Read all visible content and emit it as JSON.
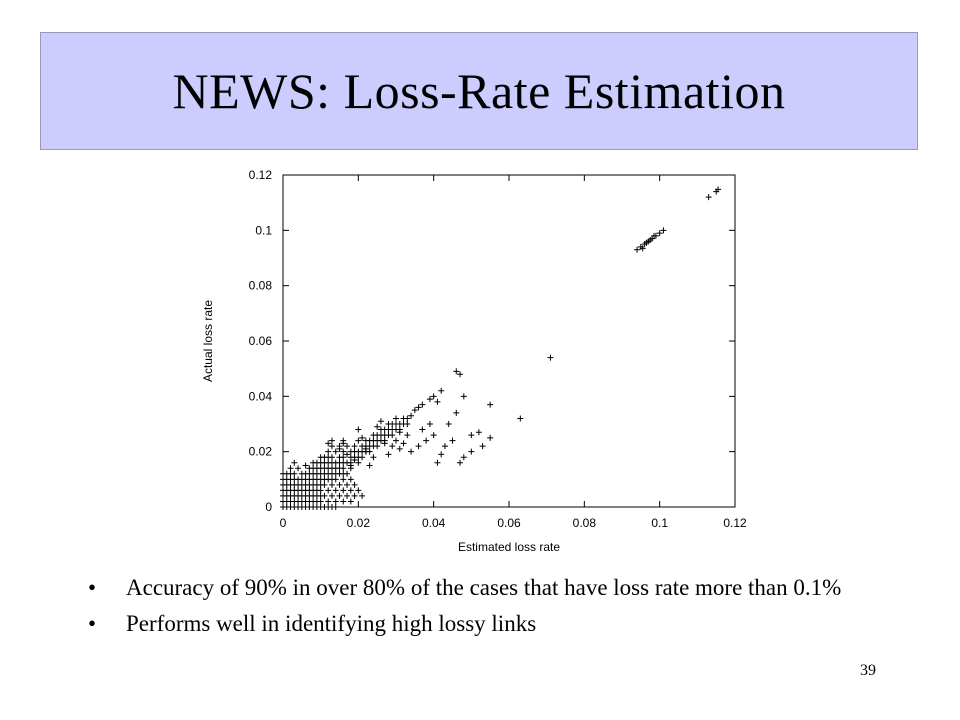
{
  "slide": {
    "title": "NEWS: Loss-Rate Estimation",
    "page_number": "39",
    "bullet_glyph": "•",
    "bullets": [
      "Accuracy of 90% in over 80% of the cases that have loss rate more than 0.1%",
      "Performs well in identifying high lossy links"
    ]
  },
  "chart_data": {
    "type": "scatter",
    "xlabel": "Estimated loss rate",
    "ylabel": "Actual loss rate",
    "xlim": [
      0,
      0.12
    ],
    "ylim": [
      0,
      0.12
    ],
    "xticks": [
      "0",
      "0.02",
      "0.04",
      "0.06",
      "0.08",
      "0.1",
      "0.12"
    ],
    "yticks": [
      "0",
      "0.02",
      "0.04",
      "0.06",
      "0.08",
      "0.1",
      "0.12"
    ],
    "grid": false,
    "marker": "+",
    "color": "#000000",
    "points": [
      [
        0.0,
        0.0
      ],
      [
        0.001,
        0.0
      ],
      [
        0.002,
        0.0
      ],
      [
        0.003,
        0.0
      ],
      [
        0.004,
        0.0
      ],
      [
        0.005,
        0.0
      ],
      [
        0.006,
        0.0
      ],
      [
        0.007,
        0.0
      ],
      [
        0.008,
        0.0
      ],
      [
        0.009,
        0.0
      ],
      [
        0.01,
        0.0
      ],
      [
        0.011,
        0.0
      ],
      [
        0.012,
        0.0
      ],
      [
        0.013,
        0.0
      ],
      [
        0.014,
        0.0
      ],
      [
        0.0,
        0.002
      ],
      [
        0.001,
        0.002
      ],
      [
        0.002,
        0.002
      ],
      [
        0.003,
        0.002
      ],
      [
        0.004,
        0.002
      ],
      [
        0.005,
        0.002
      ],
      [
        0.006,
        0.002
      ],
      [
        0.007,
        0.002
      ],
      [
        0.008,
        0.002
      ],
      [
        0.009,
        0.002
      ],
      [
        0.01,
        0.002
      ],
      [
        0.012,
        0.002
      ],
      [
        0.014,
        0.002
      ],
      [
        0.016,
        0.002
      ],
      [
        0.018,
        0.002
      ],
      [
        0.0,
        0.004
      ],
      [
        0.001,
        0.004
      ],
      [
        0.002,
        0.004
      ],
      [
        0.003,
        0.004
      ],
      [
        0.004,
        0.004
      ],
      [
        0.005,
        0.004
      ],
      [
        0.006,
        0.004
      ],
      [
        0.007,
        0.004
      ],
      [
        0.008,
        0.004
      ],
      [
        0.009,
        0.004
      ],
      [
        0.01,
        0.004
      ],
      [
        0.011,
        0.004
      ],
      [
        0.013,
        0.004
      ],
      [
        0.015,
        0.004
      ],
      [
        0.017,
        0.004
      ],
      [
        0.019,
        0.004
      ],
      [
        0.021,
        0.004
      ],
      [
        0.0,
        0.006
      ],
      [
        0.001,
        0.006
      ],
      [
        0.002,
        0.006
      ],
      [
        0.003,
        0.006
      ],
      [
        0.004,
        0.006
      ],
      [
        0.005,
        0.006
      ],
      [
        0.006,
        0.006
      ],
      [
        0.007,
        0.006
      ],
      [
        0.008,
        0.006
      ],
      [
        0.009,
        0.006
      ],
      [
        0.01,
        0.006
      ],
      [
        0.012,
        0.006
      ],
      [
        0.014,
        0.006
      ],
      [
        0.016,
        0.006
      ],
      [
        0.018,
        0.006
      ],
      [
        0.02,
        0.006
      ],
      [
        0.0,
        0.008
      ],
      [
        0.001,
        0.008
      ],
      [
        0.002,
        0.008
      ],
      [
        0.003,
        0.008
      ],
      [
        0.004,
        0.008
      ],
      [
        0.005,
        0.008
      ],
      [
        0.006,
        0.008
      ],
      [
        0.007,
        0.008
      ],
      [
        0.008,
        0.008
      ],
      [
        0.009,
        0.008
      ],
      [
        0.01,
        0.008
      ],
      [
        0.011,
        0.008
      ],
      [
        0.013,
        0.008
      ],
      [
        0.015,
        0.008
      ],
      [
        0.017,
        0.008
      ],
      [
        0.019,
        0.008
      ],
      [
        0.0,
        0.01
      ],
      [
        0.001,
        0.01
      ],
      [
        0.002,
        0.01
      ],
      [
        0.003,
        0.01
      ],
      [
        0.004,
        0.01
      ],
      [
        0.005,
        0.01
      ],
      [
        0.006,
        0.01
      ],
      [
        0.007,
        0.01
      ],
      [
        0.008,
        0.01
      ],
      [
        0.009,
        0.01
      ],
      [
        0.01,
        0.01
      ],
      [
        0.011,
        0.01
      ],
      [
        0.012,
        0.01
      ],
      [
        0.013,
        0.01
      ],
      [
        0.014,
        0.01
      ],
      [
        0.016,
        0.01
      ],
      [
        0.018,
        0.01
      ],
      [
        0.0,
        0.012
      ],
      [
        0.001,
        0.012
      ],
      [
        0.002,
        0.012
      ],
      [
        0.003,
        0.012
      ],
      [
        0.005,
        0.012
      ],
      [
        0.006,
        0.012
      ],
      [
        0.007,
        0.012
      ],
      [
        0.008,
        0.012
      ],
      [
        0.009,
        0.012
      ],
      [
        0.01,
        0.012
      ],
      [
        0.011,
        0.012
      ],
      [
        0.012,
        0.012
      ],
      [
        0.013,
        0.012
      ],
      [
        0.014,
        0.012
      ],
      [
        0.015,
        0.012
      ],
      [
        0.016,
        0.012
      ],
      [
        0.017,
        0.012
      ],
      [
        0.007,
        0.014
      ],
      [
        0.008,
        0.014
      ],
      [
        0.009,
        0.014
      ],
      [
        0.01,
        0.014
      ],
      [
        0.011,
        0.014
      ],
      [
        0.012,
        0.014
      ],
      [
        0.013,
        0.014
      ],
      [
        0.014,
        0.014
      ],
      [
        0.015,
        0.014
      ],
      [
        0.016,
        0.014
      ],
      [
        0.018,
        0.014
      ],
      [
        0.008,
        0.016
      ],
      [
        0.009,
        0.016
      ],
      [
        0.01,
        0.016
      ],
      [
        0.011,
        0.016
      ],
      [
        0.012,
        0.016
      ],
      [
        0.013,
        0.016
      ],
      [
        0.014,
        0.016
      ],
      [
        0.015,
        0.016
      ],
      [
        0.016,
        0.016
      ],
      [
        0.017,
        0.016
      ],
      [
        0.018,
        0.016
      ],
      [
        0.02,
        0.016
      ],
      [
        0.01,
        0.018
      ],
      [
        0.011,
        0.018
      ],
      [
        0.012,
        0.018
      ],
      [
        0.013,
        0.018
      ],
      [
        0.015,
        0.018
      ],
      [
        0.016,
        0.018
      ],
      [
        0.018,
        0.018
      ],
      [
        0.019,
        0.018
      ],
      [
        0.02,
        0.018
      ],
      [
        0.021,
        0.018
      ],
      [
        0.012,
        0.02
      ],
      [
        0.014,
        0.02
      ],
      [
        0.016,
        0.02
      ],
      [
        0.018,
        0.02
      ],
      [
        0.019,
        0.02
      ],
      [
        0.02,
        0.02
      ],
      [
        0.021,
        0.02
      ],
      [
        0.022,
        0.02
      ],
      [
        0.023,
        0.02
      ],
      [
        0.013,
        0.022
      ],
      [
        0.015,
        0.022
      ],
      [
        0.017,
        0.022
      ],
      [
        0.019,
        0.022
      ],
      [
        0.021,
        0.022
      ],
      [
        0.022,
        0.022
      ],
      [
        0.023,
        0.022
      ],
      [
        0.024,
        0.022
      ],
      [
        0.025,
        0.022
      ],
      [
        0.012,
        0.023
      ],
      [
        0.016,
        0.024
      ],
      [
        0.02,
        0.024
      ],
      [
        0.022,
        0.024
      ],
      [
        0.023,
        0.024
      ],
      [
        0.024,
        0.024
      ],
      [
        0.025,
        0.024
      ],
      [
        0.026,
        0.024
      ],
      [
        0.027,
        0.024
      ],
      [
        0.024,
        0.026
      ],
      [
        0.025,
        0.026
      ],
      [
        0.026,
        0.026
      ],
      [
        0.027,
        0.026
      ],
      [
        0.028,
        0.026
      ],
      [
        0.029,
        0.026
      ],
      [
        0.026,
        0.028
      ],
      [
        0.027,
        0.028
      ],
      [
        0.028,
        0.028
      ],
      [
        0.029,
        0.028
      ],
      [
        0.03,
        0.028
      ],
      [
        0.031,
        0.028
      ],
      [
        0.028,
        0.03
      ],
      [
        0.029,
        0.03
      ],
      [
        0.03,
        0.03
      ],
      [
        0.031,
        0.03
      ],
      [
        0.032,
        0.03
      ],
      [
        0.033,
        0.03
      ],
      [
        0.03,
        0.032
      ],
      [
        0.032,
        0.032
      ],
      [
        0.033,
        0.032
      ],
      [
        0.034,
        0.033
      ],
      [
        0.035,
        0.035
      ],
      [
        0.036,
        0.036
      ],
      [
        0.037,
        0.037
      ],
      [
        0.039,
        0.039
      ],
      [
        0.04,
        0.04
      ],
      [
        0.041,
        0.038
      ],
      [
        0.046,
        0.049
      ],
      [
        0.047,
        0.048
      ],
      [
        0.042,
        0.042
      ],
      [
        0.013,
        0.024
      ],
      [
        0.015,
        0.021
      ],
      [
        0.017,
        0.019
      ],
      [
        0.016,
        0.023
      ],
      [
        0.02,
        0.028
      ],
      [
        0.021,
        0.025
      ],
      [
        0.025,
        0.029
      ],
      [
        0.026,
        0.031
      ],
      [
        0.027,
        0.023
      ],
      [
        0.022,
        0.02
      ],
      [
        0.024,
        0.018
      ],
      [
        0.019,
        0.017
      ],
      [
        0.023,
        0.015
      ],
      [
        0.018,
        0.015
      ],
      [
        0.028,
        0.019
      ],
      [
        0.029,
        0.022
      ],
      [
        0.03,
        0.024
      ],
      [
        0.031,
        0.021
      ],
      [
        0.032,
        0.023
      ],
      [
        0.033,
        0.026
      ],
      [
        0.031,
        0.027
      ],
      [
        0.034,
        0.02
      ],
      [
        0.036,
        0.022
      ],
      [
        0.038,
        0.024
      ],
      [
        0.037,
        0.028
      ],
      [
        0.039,
        0.03
      ],
      [
        0.04,
        0.026
      ],
      [
        0.042,
        0.019
      ],
      [
        0.043,
        0.022
      ],
      [
        0.045,
        0.024
      ],
      [
        0.044,
        0.03
      ],
      [
        0.046,
        0.034
      ],
      [
        0.048,
        0.04
      ],
      [
        0.05,
        0.026
      ],
      [
        0.052,
        0.027
      ],
      [
        0.053,
        0.022
      ],
      [
        0.055,
        0.025
      ],
      [
        0.055,
        0.037
      ],
      [
        0.05,
        0.02
      ],
      [
        0.048,
        0.018
      ],
      [
        0.047,
        0.016
      ],
      [
        0.041,
        0.016
      ],
      [
        0.022,
        0.021
      ],
      [
        0.006,
        0.015
      ],
      [
        0.004,
        0.014
      ],
      [
        0.003,
        0.016
      ],
      [
        0.002,
        0.014
      ],
      [
        0.063,
        0.032
      ],
      [
        0.071,
        0.054
      ],
      [
        0.094,
        0.093
      ],
      [
        0.095,
        0.094
      ],
      [
        0.096,
        0.095
      ],
      [
        0.097,
        0.096
      ],
      [
        0.098,
        0.097
      ],
      [
        0.099,
        0.098
      ],
      [
        0.1,
        0.099
      ],
      [
        0.101,
        0.1
      ],
      [
        0.0955,
        0.0935
      ],
      [
        0.0965,
        0.0955
      ],
      [
        0.0975,
        0.0965
      ],
      [
        0.0985,
        0.098
      ],
      [
        0.113,
        0.112
      ],
      [
        0.115,
        0.114
      ],
      [
        0.1155,
        0.1148
      ]
    ]
  }
}
